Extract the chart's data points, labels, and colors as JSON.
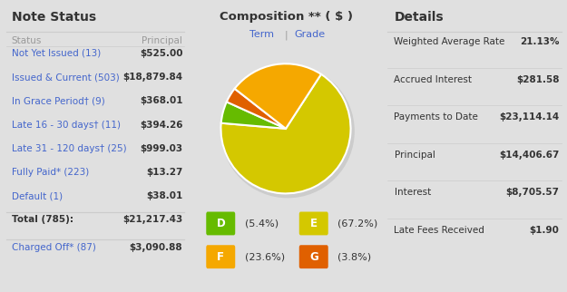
{
  "bg_color": "#e0e0e0",
  "white_color": "#ffffff",
  "divider_color": "#cccccc",
  "note_status_title": "Note Status",
  "note_status_col1": "Status",
  "note_status_col2": "Principal",
  "note_rows": [
    {
      "label": "Not Yet Issued (13)",
      "value": "$525.00"
    },
    {
      "label": "Issued & Current (503)",
      "value": "$18,879.84"
    },
    {
      "label": "In Grace Period† (9)",
      "value": "$368.01"
    },
    {
      "label": "Late 16 - 30 days† (11)",
      "value": "$394.26"
    },
    {
      "label": "Late 31 - 120 days† (25)",
      "value": "$999.03"
    },
    {
      "label": "Fully Paid* (223)",
      "value": "$13.27"
    },
    {
      "label": "Default (1)",
      "value": "$38.01"
    }
  ],
  "total_label": "Total (785):",
  "total_value": "$21,217.43",
  "charged_label": "Charged Off* (87)",
  "charged_value": "$3,090.88",
  "comp_title": "Composition ** ( $ )",
  "comp_link1": "Term",
  "comp_link2": "Grade",
  "pie_sizes": [
    67.2,
    5.4,
    23.6,
    3.8
  ],
  "pie_colors": [
    "#d4c800",
    "#66bb00",
    "#f5a800",
    "#e06000"
  ],
  "pie_labels_ordered": [
    "D",
    "E",
    "F",
    "G"
  ],
  "pie_colors_ordered": [
    "#66bb00",
    "#d4c800",
    "#f5a800",
    "#e06000"
  ],
  "pie_pcts_ordered": [
    "(5.4%)",
    "(67.2%)",
    "(23.6%)",
    "(3.8%)"
  ],
  "details_title": "Details",
  "details_rows": [
    {
      "label": "Weighted Average Rate",
      "value": "21.13%"
    },
    {
      "label": "Accrued Interest",
      "value": "$281.58"
    },
    {
      "label": "Payments to Date",
      "value": "$23,114.14"
    },
    {
      "label": "Principal",
      "value": "$14,406.67"
    },
    {
      "label": "Interest",
      "value": "$8,705.57"
    },
    {
      "label": "Late Fees Received",
      "value": "$1.90"
    }
  ],
  "blue_color": "#4466cc",
  "dark_text": "#333333",
  "gray_text": "#999999"
}
